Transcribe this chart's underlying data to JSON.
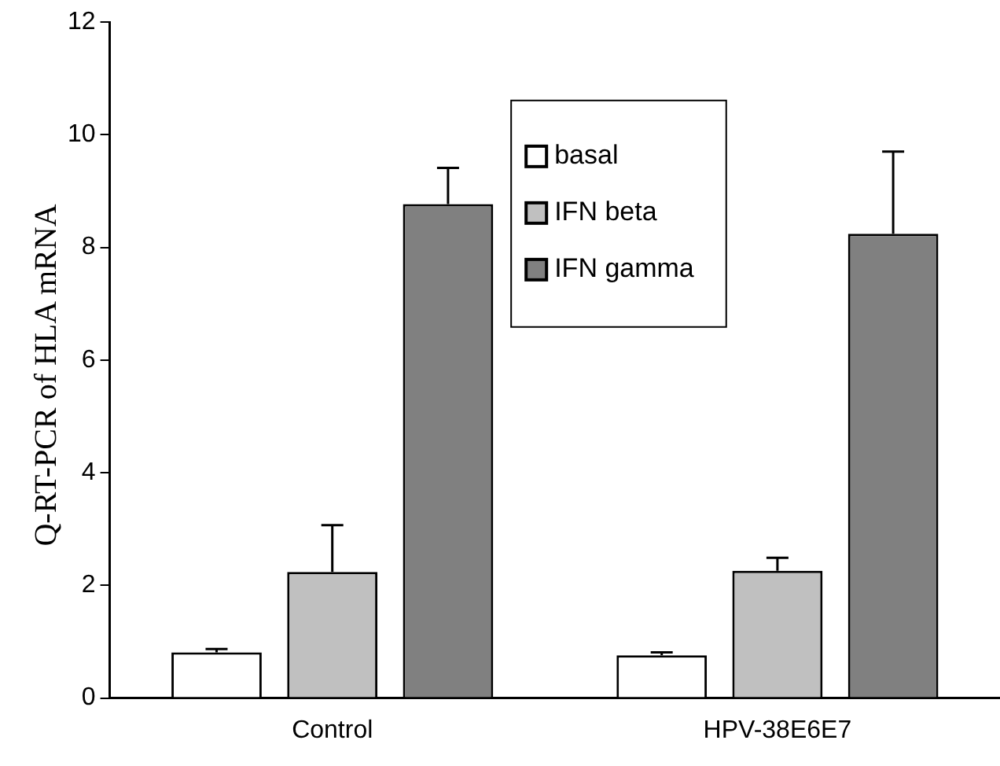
{
  "chart_data": {
    "type": "bar",
    "ylabel": "Q-RT-PCR of HLA mRNA",
    "categories": [
      "Control",
      "HPV-38E6E7"
    ],
    "series": [
      {
        "name": "basal",
        "color": "#ffffff",
        "values": [
          0.81,
          0.76
        ],
        "errors": [
          [
            0.81,
            0.87
          ],
          [
            0.76,
            0.81
          ]
        ]
      },
      {
        "name": "IFN beta",
        "color": "#c0c0c0",
        "values": [
          2.24,
          2.26
        ],
        "errors": [
          [
            2.24,
            3.07
          ],
          [
            2.26,
            2.49
          ]
        ]
      },
      {
        "name": "IFN gamma",
        "color": "#808080",
        "values": [
          8.77,
          8.24
        ],
        "errors": [
          [
            8.77,
            9.41
          ],
          [
            8.24,
            9.7
          ]
        ]
      }
    ],
    "ylim": [
      0,
      12
    ],
    "yticks": [
      0,
      2,
      4,
      6,
      8,
      10,
      12
    ],
    "grid": false,
    "legend": "top right"
  }
}
